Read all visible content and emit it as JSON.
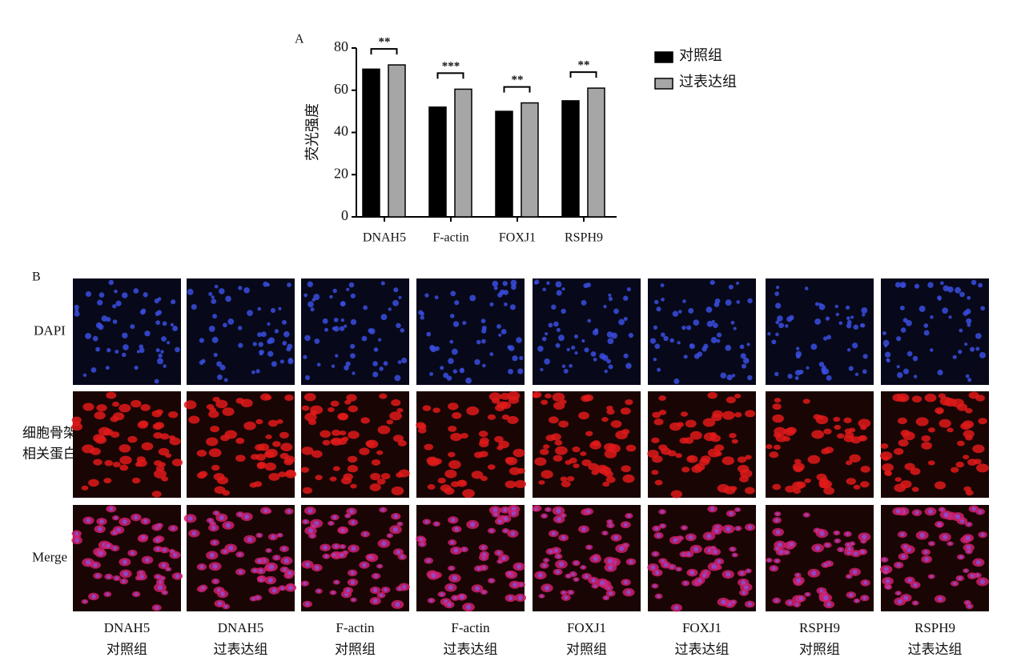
{
  "chart_data": {
    "type": "bar",
    "panel_label": "A",
    "y_label": "荧光强度",
    "categories": [
      "DNAH5",
      "F-actin",
      "FOXJ1",
      "RSPH9"
    ],
    "series": [
      {
        "name": "对照组",
        "color": "#000000",
        "values": [
          70,
          52,
          50,
          55
        ]
      },
      {
        "name": "过表达组",
        "color": "#a6a6a6",
        "values": [
          72,
          60.5,
          54,
          61
        ]
      }
    ],
    "significance": [
      "**",
      "***",
      "**",
      "**"
    ],
    "ylim": [
      0,
      80
    ],
    "yticks": [
      0,
      20,
      40,
      60,
      80
    ],
    "legend": "right"
  },
  "panel_b": {
    "label": "B",
    "row_labels": [
      [
        "DAPI"
      ],
      [
        "细胞骨架",
        "相关蛋白"
      ],
      [
        "Merge"
      ]
    ],
    "columns": [
      {
        "protein": "DNAH5",
        "group": "对照组"
      },
      {
        "protein": "DNAH5",
        "group": "过表达组"
      },
      {
        "protein": "F-actin",
        "group": "对照组"
      },
      {
        "protein": "F-actin",
        "group": "过表达组"
      },
      {
        "protein": "FOXJ1",
        "group": "对照组"
      },
      {
        "protein": "FOXJ1",
        "group": "过表达组"
      },
      {
        "protein": "RSPH9",
        "group": "对照组"
      },
      {
        "protein": "RSPH9",
        "group": "过表达组"
      }
    ]
  }
}
